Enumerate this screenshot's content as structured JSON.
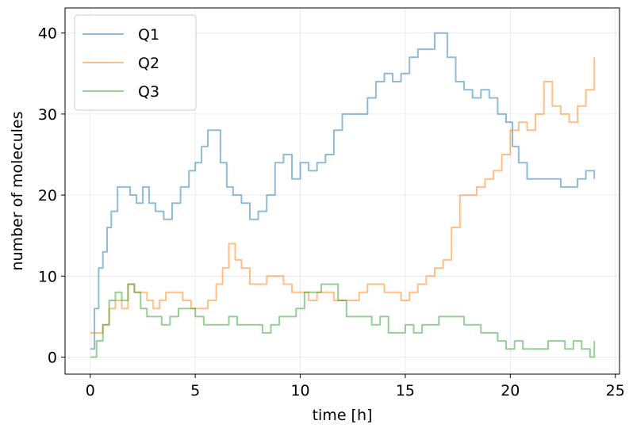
{
  "chart_data": {
    "type": "line",
    "title": "",
    "xlabel": "time [h]",
    "ylabel": "number of molecules",
    "xlim": [
      -1.2,
      25.2
    ],
    "ylim": [
      -2.1,
      43.1
    ],
    "xticks": [
      0,
      5,
      10,
      15,
      20,
      25
    ],
    "yticks": [
      0,
      10,
      20,
      30,
      40
    ],
    "grid": true,
    "legend_position": "top-left",
    "series": [
      {
        "name": "Q1",
        "color": "#1f77b4",
        "x": [
          0,
          0.2,
          0.4,
          0.6,
          0.8,
          1.0,
          1.3,
          1.6,
          1.9,
          2.2,
          2.5,
          2.8,
          3.1,
          3.5,
          3.9,
          4.3,
          4.7,
          5.0,
          5.3,
          5.6,
          5.9,
          6.2,
          6.5,
          6.8,
          7.2,
          7.6,
          8.0,
          8.4,
          8.8,
          9.2,
          9.6,
          10.0,
          10.4,
          10.8,
          11.2,
          11.6,
          12.0,
          12.4,
          12.8,
          13.2,
          13.6,
          14.0,
          14.4,
          14.8,
          15.2,
          15.6,
          16.0,
          16.4,
          16.7,
          17.0,
          17.4,
          17.8,
          18.2,
          18.6,
          19.0,
          19.4,
          19.8,
          20.1,
          20.4,
          20.8,
          21.2,
          21.6,
          22.0,
          22.4,
          22.8,
          23.2,
          23.6,
          24.0
        ],
        "values": [
          1,
          6,
          11,
          13,
          16,
          18,
          21,
          21,
          20,
          19,
          21,
          19,
          18,
          17,
          19,
          21,
          23,
          24,
          26,
          28,
          28,
          24,
          21,
          20,
          19,
          17,
          18,
          20,
          24,
          25,
          22,
          24,
          23,
          24,
          25,
          28,
          30,
          30,
          30,
          32,
          34,
          35,
          34,
          35,
          37,
          38,
          38,
          40,
          40,
          37,
          34,
          33,
          32,
          33,
          32,
          30,
          29,
          26,
          24,
          22,
          22,
          22,
          22,
          21,
          21,
          22,
          23,
          22
        ]
      },
      {
        "name": "Q2",
        "color": "#ff7f0e",
        "x": [
          0,
          0.3,
          0.6,
          0.9,
          1.2,
          1.5,
          1.8,
          2.1,
          2.4,
          2.7,
          3.0,
          3.3,
          3.6,
          4.0,
          4.4,
          4.8,
          5.2,
          5.6,
          6.0,
          6.3,
          6.6,
          6.9,
          7.2,
          7.6,
          8.0,
          8.4,
          8.8,
          9.2,
          9.6,
          10.0,
          10.4,
          10.8,
          11.2,
          11.6,
          12.0,
          12.4,
          12.8,
          13.2,
          13.6,
          14.0,
          14.4,
          14.8,
          15.2,
          15.6,
          16.0,
          16.4,
          16.8,
          17.2,
          17.6,
          18.0,
          18.4,
          18.8,
          19.2,
          19.6,
          20.0,
          20.4,
          20.8,
          21.2,
          21.6,
          22.0,
          22.4,
          22.8,
          23.2,
          23.6,
          24.0
        ],
        "values": [
          3,
          3,
          4,
          6,
          7,
          6,
          9,
          8,
          8,
          7,
          6,
          7,
          8,
          8,
          7,
          6,
          6,
          7,
          9,
          11,
          14,
          12,
          11,
          9,
          9,
          10,
          10,
          9,
          8,
          8,
          7,
          8,
          8,
          7,
          7,
          7,
          8,
          9,
          9,
          8,
          8,
          7,
          8,
          9,
          10,
          11,
          12,
          16,
          20,
          20,
          21,
          22,
          23,
          25,
          28,
          29,
          28,
          30,
          34,
          31,
          30,
          29,
          31,
          33,
          37
        ]
      },
      {
        "name": "Q3",
        "color": "#2ca02c",
        "x": [
          0,
          0.3,
          0.6,
          0.9,
          1.2,
          1.5,
          1.8,
          2.1,
          2.4,
          2.7,
          3.0,
          3.4,
          3.8,
          4.2,
          4.6,
          5.0,
          5.4,
          5.8,
          6.2,
          6.6,
          7.0,
          7.4,
          7.8,
          8.2,
          8.6,
          9.0,
          9.4,
          9.8,
          10.2,
          10.6,
          11.0,
          11.4,
          11.8,
          12.2,
          12.6,
          13.0,
          13.4,
          13.8,
          14.2,
          14.6,
          15.0,
          15.4,
          15.8,
          16.2,
          16.6,
          17.0,
          17.4,
          17.8,
          18.2,
          18.6,
          19.0,
          19.4,
          19.8,
          20.2,
          20.6,
          21.0,
          21.4,
          21.8,
          22.2,
          22.6,
          23.0,
          23.4,
          23.8,
          24.0
        ],
        "values": [
          0,
          2,
          4,
          7,
          8,
          7,
          9,
          8,
          6,
          5,
          5,
          4,
          5,
          6,
          6,
          5,
          4,
          4,
          4,
          5,
          4,
          4,
          4,
          3,
          4,
          5,
          5,
          6,
          8,
          8,
          9,
          9,
          7,
          5,
          5,
          5,
          4,
          5,
          3,
          3,
          4,
          3,
          4,
          4,
          5,
          5,
          5,
          4,
          4,
          3,
          3,
          2,
          1,
          2,
          1,
          1,
          1,
          2,
          2,
          1,
          2,
          1,
          0,
          2
        ]
      }
    ]
  }
}
